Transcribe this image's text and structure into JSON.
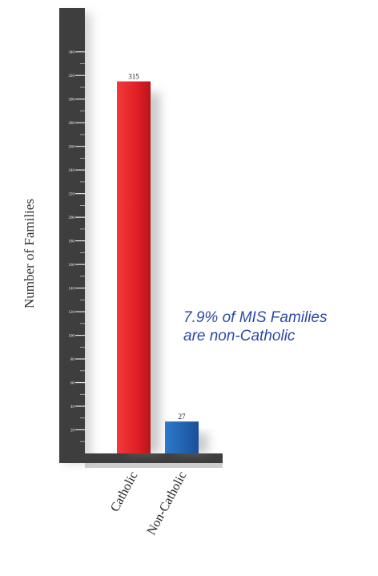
{
  "chart_data": {
    "type": "bar",
    "categories": [
      "Catholic",
      "Non-Catholic"
    ],
    "values": [
      315,
      27
    ],
    "data_labels": [
      "315",
      "27"
    ],
    "ylabel": "Number of Families",
    "xlabel": "",
    "ylim": [
      0,
      350
    ],
    "y_ticks": [
      20,
      40,
      60,
      80,
      100,
      120,
      140,
      160,
      180,
      200,
      220,
      240,
      260,
      280,
      300,
      320,
      340
    ],
    "grid": false,
    "legend": "none",
    "bar_colors": [
      "#e5262a",
      "#1f63b4"
    ],
    "annotation": {
      "line1": "7.9% of MIS Families",
      "line2": "are non-Catholic",
      "color": "#2a4aa8"
    }
  }
}
